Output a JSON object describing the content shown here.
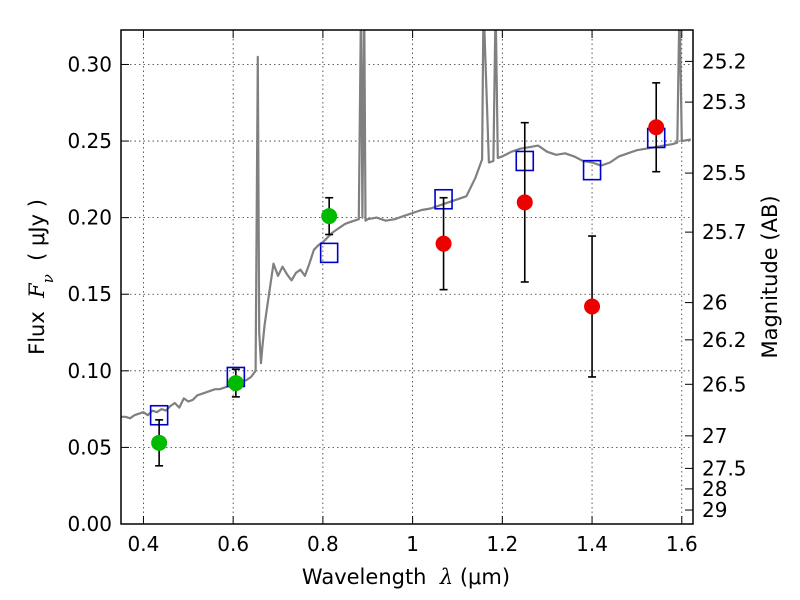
{
  "chart_data": {
    "type": "scatter",
    "title": "",
    "xlabel": "Wavelength  λ (μm)",
    "xlabel_parts": {
      "prefix": "Wavelength  ",
      "symbol": "λ",
      "suffix": " (μm)"
    },
    "ylabel": "Flux  Fν  ( μJy )",
    "ylabel_parts": {
      "prefix": "Flux  ",
      "symbol": "F",
      "subscript": "ν",
      "suffix": "  ( μJy )"
    },
    "y2label": "Magnitude (AB)",
    "xlim": [
      0.35,
      1.625
    ],
    "ylim": [
      0.0,
      0.3225
    ],
    "grid": true,
    "x_ticks": [
      0.4,
      0.6,
      0.8,
      1.0,
      1.2,
      1.4,
      1.6
    ],
    "x_tick_labels": [
      "0.4",
      "0.6",
      "0.8",
      "1",
      "1.2",
      "1.4",
      "1.6"
    ],
    "y_ticks": [
      0.0,
      0.05,
      0.1,
      0.15,
      0.2,
      0.25,
      0.3
    ],
    "y_tick_labels": [
      "0.00",
      "0.05",
      "0.10",
      "0.15",
      "0.20",
      "0.25",
      "0.30"
    ],
    "y2_ticks": [
      {
        "mag": 25.2,
        "label": "25.2"
      },
      {
        "mag": 25.3,
        "label": "25.3"
      },
      {
        "mag": 25.5,
        "label": "25.5"
      },
      {
        "mag": 25.7,
        "label": "25.7"
      },
      {
        "mag": 26.0,
        "label": "26"
      },
      {
        "mag": 26.2,
        "label": "26.2"
      },
      {
        "mag": 26.5,
        "label": "26.5"
      },
      {
        "mag": 27.0,
        "label": "27"
      },
      {
        "mag": 27.5,
        "label": "27.5"
      },
      {
        "mag": 28.0,
        "label": "28"
      },
      {
        "mag": 29.0,
        "label": "29"
      }
    ],
    "series": [
      {
        "name": "model-spectrum",
        "kind": "line",
        "color": "#808080",
        "x": [
          0.35,
          0.36,
          0.37,
          0.38,
          0.39,
          0.4,
          0.41,
          0.42,
          0.43,
          0.44,
          0.45,
          0.46,
          0.47,
          0.48,
          0.49,
          0.5,
          0.51,
          0.52,
          0.53,
          0.54,
          0.55,
          0.56,
          0.57,
          0.58,
          0.59,
          0.6,
          0.61,
          0.62,
          0.63,
          0.64,
          0.65,
          0.655,
          0.658,
          0.662,
          0.665,
          0.67,
          0.68,
          0.69,
          0.7,
          0.71,
          0.72,
          0.73,
          0.74,
          0.75,
          0.76,
          0.77,
          0.78,
          0.79,
          0.8,
          0.81,
          0.82,
          0.83,
          0.84,
          0.85,
          0.86,
          0.87,
          0.88,
          0.885,
          0.888,
          0.892,
          0.895,
          0.9,
          0.92,
          0.94,
          0.96,
          0.98,
          1.0,
          1.02,
          1.04,
          1.06,
          1.08,
          1.1,
          1.12,
          1.14,
          1.155,
          1.158,
          1.17,
          1.18,
          1.185,
          1.19,
          1.2,
          1.22,
          1.24,
          1.26,
          1.28,
          1.3,
          1.32,
          1.34,
          1.36,
          1.38,
          1.4,
          1.42,
          1.44,
          1.46,
          1.48,
          1.5,
          1.52,
          1.54,
          1.56,
          1.58,
          1.59,
          1.595,
          1.6,
          1.62
        ],
        "y": [
          0.07,
          0.07,
          0.069,
          0.071,
          0.072,
          0.073,
          0.071,
          0.074,
          0.073,
          0.075,
          0.074,
          0.077,
          0.079,
          0.076,
          0.082,
          0.08,
          0.081,
          0.084,
          0.085,
          0.086,
          0.087,
          0.088,
          0.088,
          0.089,
          0.09,
          0.091,
          0.092,
          0.093,
          0.094,
          0.096,
          0.1,
          0.305,
          0.125,
          0.105,
          0.115,
          0.13,
          0.15,
          0.17,
          0.162,
          0.168,
          0.163,
          0.159,
          0.164,
          0.166,
          0.162,
          0.17,
          0.179,
          0.182,
          0.184,
          0.187,
          0.19,
          0.192,
          0.194,
          0.196,
          0.197,
          0.198,
          0.199,
          0.34,
          0.2,
          0.34,
          0.198,
          0.199,
          0.2,
          0.198,
          0.199,
          0.201,
          0.203,
          0.205,
          0.206,
          0.208,
          0.21,
          0.212,
          0.214,
          0.226,
          0.238,
          0.34,
          0.236,
          0.237,
          0.34,
          0.239,
          0.24,
          0.243,
          0.245,
          0.246,
          0.247,
          0.243,
          0.241,
          0.242,
          0.24,
          0.237,
          0.236,
          0.234,
          0.236,
          0.24,
          0.242,
          0.244,
          0.245,
          0.246,
          0.247,
          0.248,
          0.249,
          0.34,
          0.25,
          0.251
        ]
      },
      {
        "name": "model-photometry",
        "kind": "open-square",
        "color": "#0000cc",
        "x": [
          0.435,
          0.606,
          0.814,
          1.069,
          1.25,
          1.4,
          1.543
        ],
        "y": [
          0.071,
          0.096,
          0.177,
          0.212,
          0.237,
          0.231,
          0.252
        ]
      },
      {
        "name": "observed-optical",
        "kind": "filled-circle",
        "color": "#00bb00",
        "x": [
          0.435,
          0.606,
          0.814
        ],
        "y": [
          0.053,
          0.092,
          0.201
        ],
        "yerr": [
          0.015,
          0.009,
          0.012
        ]
      },
      {
        "name": "observed-nir",
        "kind": "filled-circle",
        "color": "#ee0000",
        "x": [
          1.069,
          1.25,
          1.4,
          1.543
        ],
        "y": [
          0.183,
          0.21,
          0.142,
          0.259
        ],
        "yerr": [
          0.03,
          0.052,
          0.046,
          0.029
        ]
      }
    ]
  }
}
